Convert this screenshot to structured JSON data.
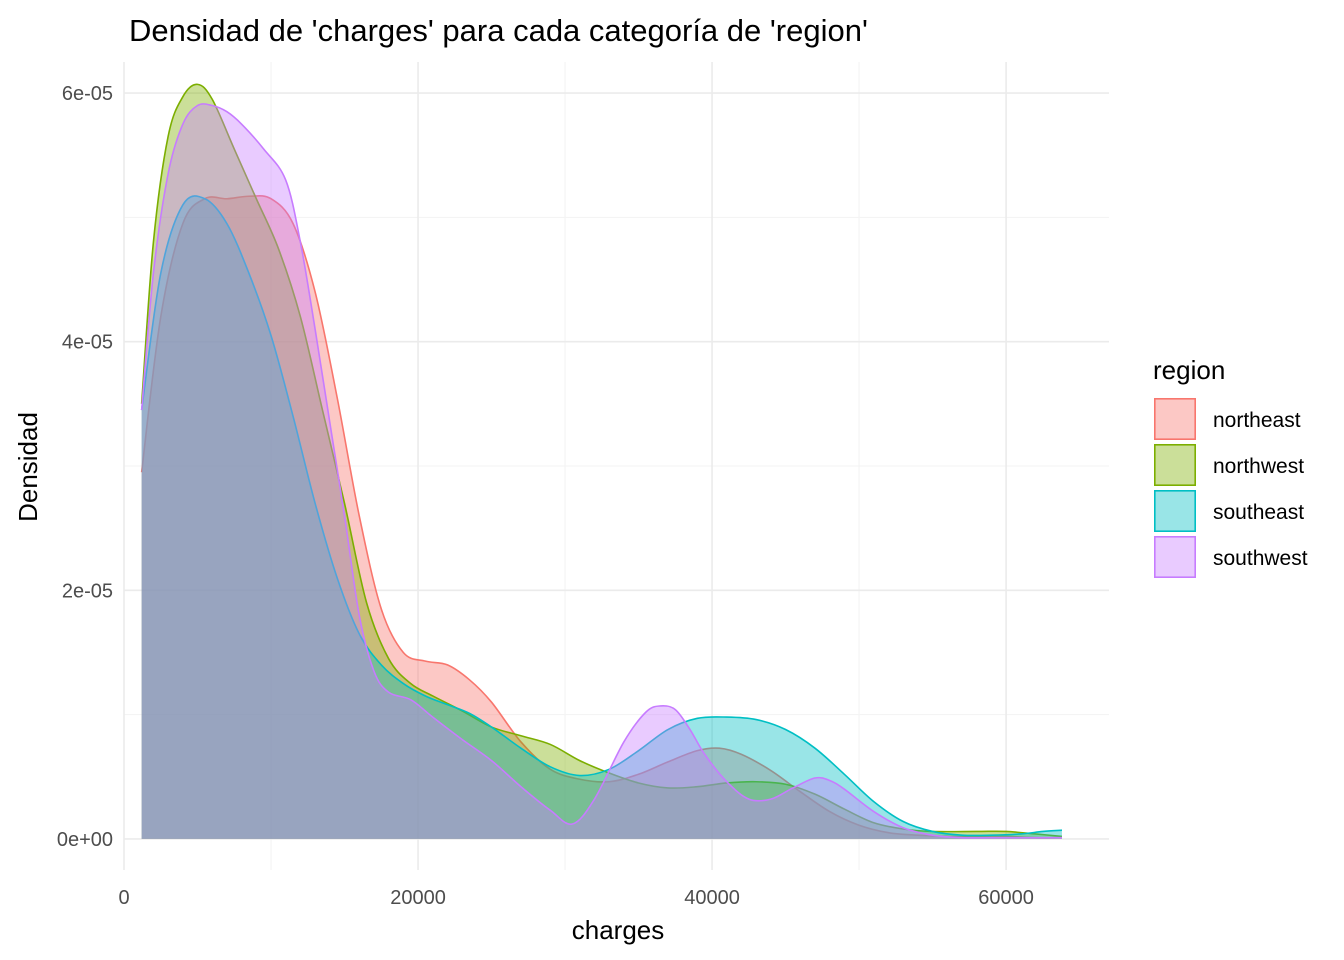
{
  "chart_data": {
    "type": "area",
    "title": "Densidad de 'charges' para cada categoría de 'region'",
    "xlabel": "charges",
    "ylabel": "Densidad",
    "xlim": [
      0,
      67000
    ],
    "ylim": [
      -2.5e-06,
      6.25e-05
    ],
    "x_ticks": [
      0,
      20000,
      40000,
      60000
    ],
    "x_tick_labels": [
      "0",
      "20000",
      "40000",
      "60000"
    ],
    "y_ticks": [
      0,
      2e-05,
      4e-05,
      6e-05
    ],
    "y_tick_labels": [
      "0e+00",
      "2e-05",
      "4e-05",
      "6e-05"
    ],
    "grid": true,
    "legend": {
      "title": "region",
      "position": "right"
    },
    "fill_opacity": 0.4,
    "series": [
      {
        "name": "northeast",
        "color": "#F8766D",
        "x": [
          1200,
          2500,
          4000,
          5500,
          7000,
          8500,
          10000,
          11500,
          13000,
          14500,
          16000,
          17500,
          19000,
          20500,
          22000,
          23500,
          25000,
          27000,
          29000,
          31000,
          33000,
          35000,
          37000,
          39000,
          40500,
          42000,
          44000,
          46000,
          48000,
          50000,
          52000,
          54000,
          56000,
          58000,
          60000,
          62000,
          63800
        ],
        "y": [
          2.95e-05,
          4.2e-05,
          4.95e-05,
          5.15e-05,
          5.15e-05,
          5.17e-05,
          5.15e-05,
          4.95e-05,
          4.4e-05,
          3.55e-05,
          2.6e-05,
          1.85e-05,
          1.5e-05,
          1.43e-05,
          1.4e-05,
          1.28e-05,
          1.1e-05,
          7.8e-06,
          5.6e-06,
          4.8e-06,
          4.6e-06,
          5.2e-06,
          6.2e-06,
          7.1e-06,
          7.3e-06,
          6.8e-06,
          5.5e-06,
          3.8e-06,
          2.2e-06,
          1.1e-06,
          5e-07,
          3e-07,
          2e-07,
          2e-07,
          2e-07,
          1e-07,
          1e-07
        ]
      },
      {
        "name": "northwest",
        "color": "#7CAE00",
        "x": [
          1200,
          2000,
          3000,
          4000,
          5000,
          6000,
          7500,
          9000,
          10500,
          12000,
          13500,
          15000,
          16500,
          18000,
          19500,
          21000,
          23000,
          25000,
          27000,
          29000,
          31000,
          33000,
          35000,
          37000,
          39000,
          41000,
          43000,
          45000,
          47000,
          49000,
          51000,
          53000,
          55000,
          58000,
          60000,
          62000,
          63800
        ],
        "y": [
          3.5e-05,
          4.8e-05,
          5.65e-05,
          5.97e-05,
          6.07e-05,
          5.95e-05,
          5.55e-05,
          5.15e-05,
          4.75e-05,
          4.2e-05,
          3.45e-05,
          2.7e-05,
          1.9e-05,
          1.45e-05,
          1.25e-05,
          1.15e-05,
          1.03e-05,
          9e-06,
          8.3e-06,
          7.6e-06,
          6.3e-06,
          5.3e-06,
          4.5e-06,
          4.1e-06,
          4.2e-06,
          4.5e-06,
          4.6e-06,
          4.4e-06,
          3.6e-06,
          2.4e-06,
          1.3e-06,
          8e-07,
          6e-07,
          6e-07,
          6e-07,
          4e-07,
          2e-07
        ]
      },
      {
        "name": "southeast",
        "color": "#00BFC4",
        "x": [
          1200,
          2500,
          4000,
          5500,
          7000,
          8500,
          10000,
          11500,
          13000,
          14500,
          16000,
          17500,
          19000,
          20500,
          22000,
          23500,
          25000,
          27000,
          29000,
          31000,
          33000,
          35000,
          37000,
          39000,
          41000,
          43000,
          45000,
          47000,
          49000,
          51000,
          53000,
          55000,
          57000,
          59000,
          61000,
          62500,
          63800
        ],
        "y": [
          3.45e-05,
          4.55e-05,
          5.1e-05,
          5.15e-05,
          4.95e-05,
          4.55e-05,
          4.05e-05,
          3.4e-05,
          2.7e-05,
          2.1e-05,
          1.65e-05,
          1.4e-05,
          1.25e-05,
          1.15e-05,
          1.08e-05,
          1.01e-05,
          9e-06,
          7.3e-06,
          5.8e-06,
          5.1e-06,
          5.6e-06,
          7.1e-06,
          8.8e-06,
          9.7e-06,
          9.8e-06,
          9.6e-06,
          8.8e-06,
          7.3e-06,
          5.2e-06,
          3e-06,
          1.4e-06,
          6e-07,
          3e-07,
          3e-07,
          4e-07,
          6e-07,
          7e-07
        ]
      },
      {
        "name": "southwest",
        "color": "#C77CFF",
        "x": [
          1200,
          2000,
          3000,
          4000,
          5000,
          6000,
          7000,
          8000,
          9500,
          11000,
          12000,
          13000,
          14000,
          15000,
          16000,
          17000,
          18000,
          19500,
          21000,
          23000,
          25000,
          27000,
          29000,
          30500,
          32000,
          34000,
          35500,
          36500,
          37500,
          38500,
          39500,
          41000,
          42500,
          44000,
          45500,
          47000,
          48000,
          49000,
          51000,
          53000,
          55000,
          57000,
          59000,
          61000,
          63800
        ],
        "y": [
          3.45e-05,
          4.55e-05,
          5.35e-05,
          5.75e-05,
          5.9e-05,
          5.9e-05,
          5.85e-05,
          5.75e-05,
          5.55e-05,
          5.3e-05,
          4.8e-05,
          4.1e-05,
          3.35e-05,
          2.6e-05,
          1.8e-05,
          1.35e-05,
          1.18e-05,
          1.12e-05,
          9.8e-06,
          8e-06,
          6.3e-06,
          4.2e-06,
          2.3e-06,
          1.2e-06,
          3.2e-06,
          7.8e-06,
          1.02e-05,
          1.07e-05,
          1.04e-05,
          8.8e-06,
          6.8e-06,
          4.6e-06,
          3.2e-06,
          3.2e-06,
          4.1e-06,
          4.9e-06,
          4.7e-06,
          4e-06,
          2.2e-06,
          9e-07,
          3e-07,
          1e-07,
          1e-07,
          1e-07,
          1e-07
        ]
      }
    ]
  }
}
